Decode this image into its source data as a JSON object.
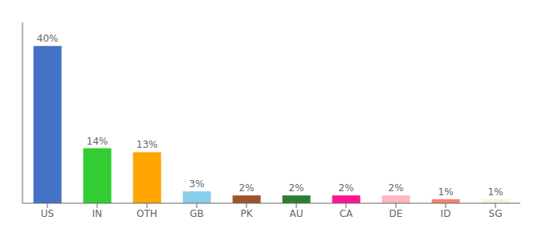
{
  "chart_data": {
    "type": "bar",
    "categories": [
      "US",
      "IN",
      "OTH",
      "GB",
      "PK",
      "AU",
      "CA",
      "DE",
      "ID",
      "SG"
    ],
    "values": [
      40,
      14,
      13,
      3,
      2,
      2,
      2,
      2,
      1,
      1
    ],
    "value_labels": [
      "40%",
      "14%",
      "13%",
      "3%",
      "2%",
      "2%",
      "2%",
      "2%",
      "1%",
      "1%"
    ],
    "colors": [
      "#4472C4",
      "#33CC33",
      "#FFA500",
      "#87CEEB",
      "#A0522D",
      "#2E7D32",
      "#FF1493",
      "#FFB6C1",
      "#FA8072",
      "#F5F5DC"
    ],
    "ylim": [
      0,
      46
    ],
    "data_labels": true,
    "tick_labels": "x",
    "grid": false
  }
}
